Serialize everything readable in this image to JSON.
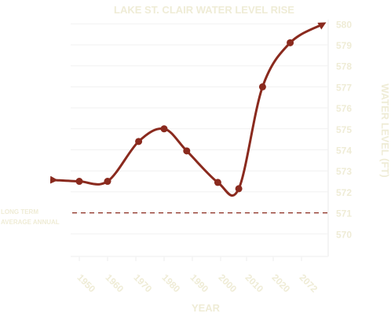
{
  "chart_data": {
    "type": "line",
    "title": "LAKE ST. CLAIR WATER LEVEL RISE",
    "xlabel": "YEAR",
    "ylabel": "WATER LEVEL  (FT)",
    "x_tick_labels": [
      "1950",
      "1960",
      "1970",
      "1980",
      "1990",
      "2000",
      "2010",
      "2020",
      "2072"
    ],
    "y_ticks": [
      570,
      571,
      572,
      573,
      574,
      575,
      576,
      577,
      578,
      579,
      580
    ],
    "y_tick_labels": [
      "570",
      "571",
      "572",
      "573",
      "574",
      "575",
      "576",
      "577",
      "578",
      "579",
      "580"
    ],
    "ylim": [
      569.1,
      580.2
    ],
    "grid": true,
    "series": [
      {
        "points": [
          {
            "x": 1950,
            "y": 572.5
          },
          {
            "x": 1960,
            "y": 572.5
          },
          {
            "x": 1971,
            "y": 574.4
          },
          {
            "x": 1980,
            "y": 575.0
          },
          {
            "x": 1988,
            "y": 573.95
          },
          {
            "x": 1999,
            "y": 572.45
          },
          {
            "x": 2007,
            "y": 572.15
          },
          {
            "x": 2016,
            "y": 577.0
          },
          {
            "x": 2026,
            "y": 579.1
          }
        ],
        "color": "#8a2a1e"
      }
    ],
    "reference_line": {
      "y": 571.0,
      "label_lines": [
        "LONG TERM",
        "AVERAGE ANNUAL"
      ],
      "color": "#8a2a1e",
      "style": "dashed"
    },
    "colors": {
      "series": "#8a2a1e",
      "text": "#efecd6",
      "grid": "#f1f1f1"
    }
  }
}
